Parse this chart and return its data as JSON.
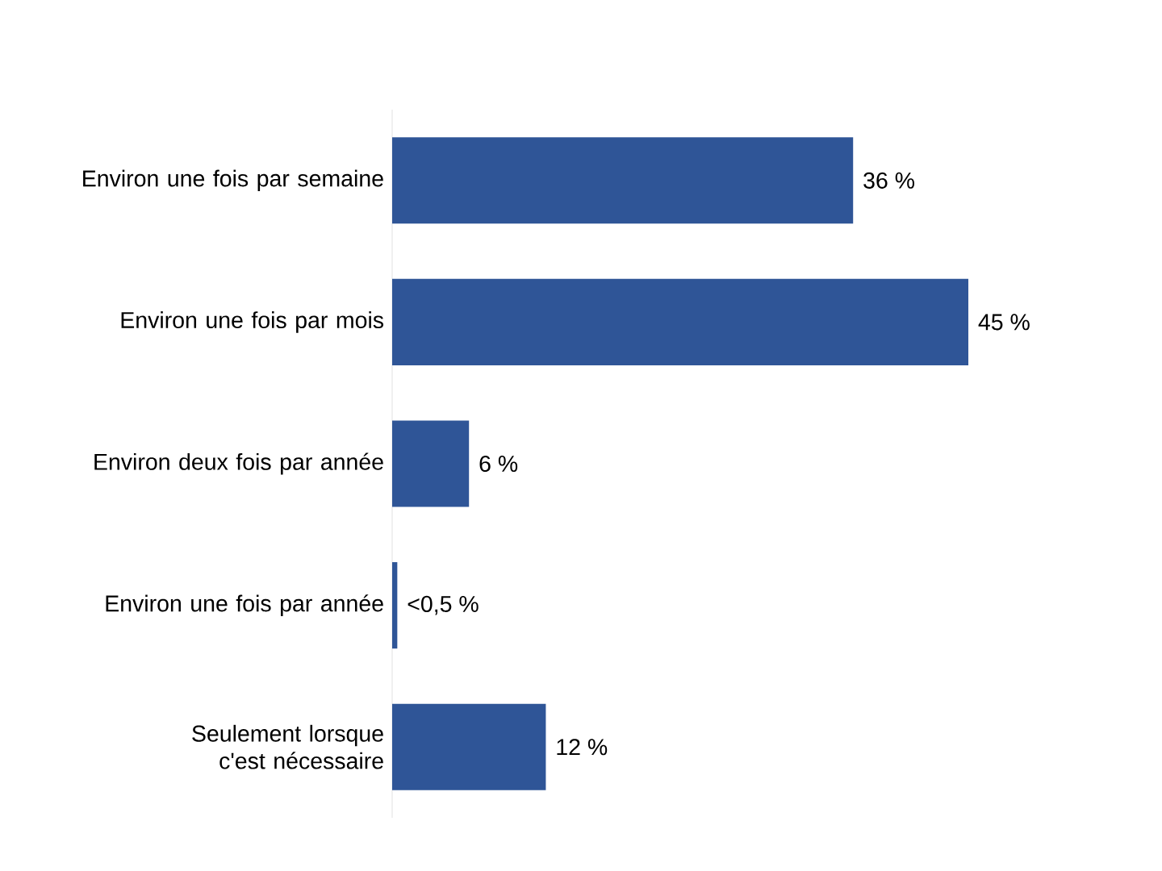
{
  "chart_data": {
    "type": "bar",
    "orientation": "horizontal",
    "categories": [
      "Environ une fois par semaine",
      "Environ une fois par mois",
      "Environ deux fois par année",
      "Environ une fois par année",
      "Seulement lorsque c'est nécessaire"
    ],
    "values": [
      36,
      45,
      6,
      0.4,
      12
    ],
    "value_labels": [
      "36 %",
      "45 %",
      "6 %",
      "<0,5 %",
      "12 %"
    ],
    "color": "#2f5597"
  }
}
